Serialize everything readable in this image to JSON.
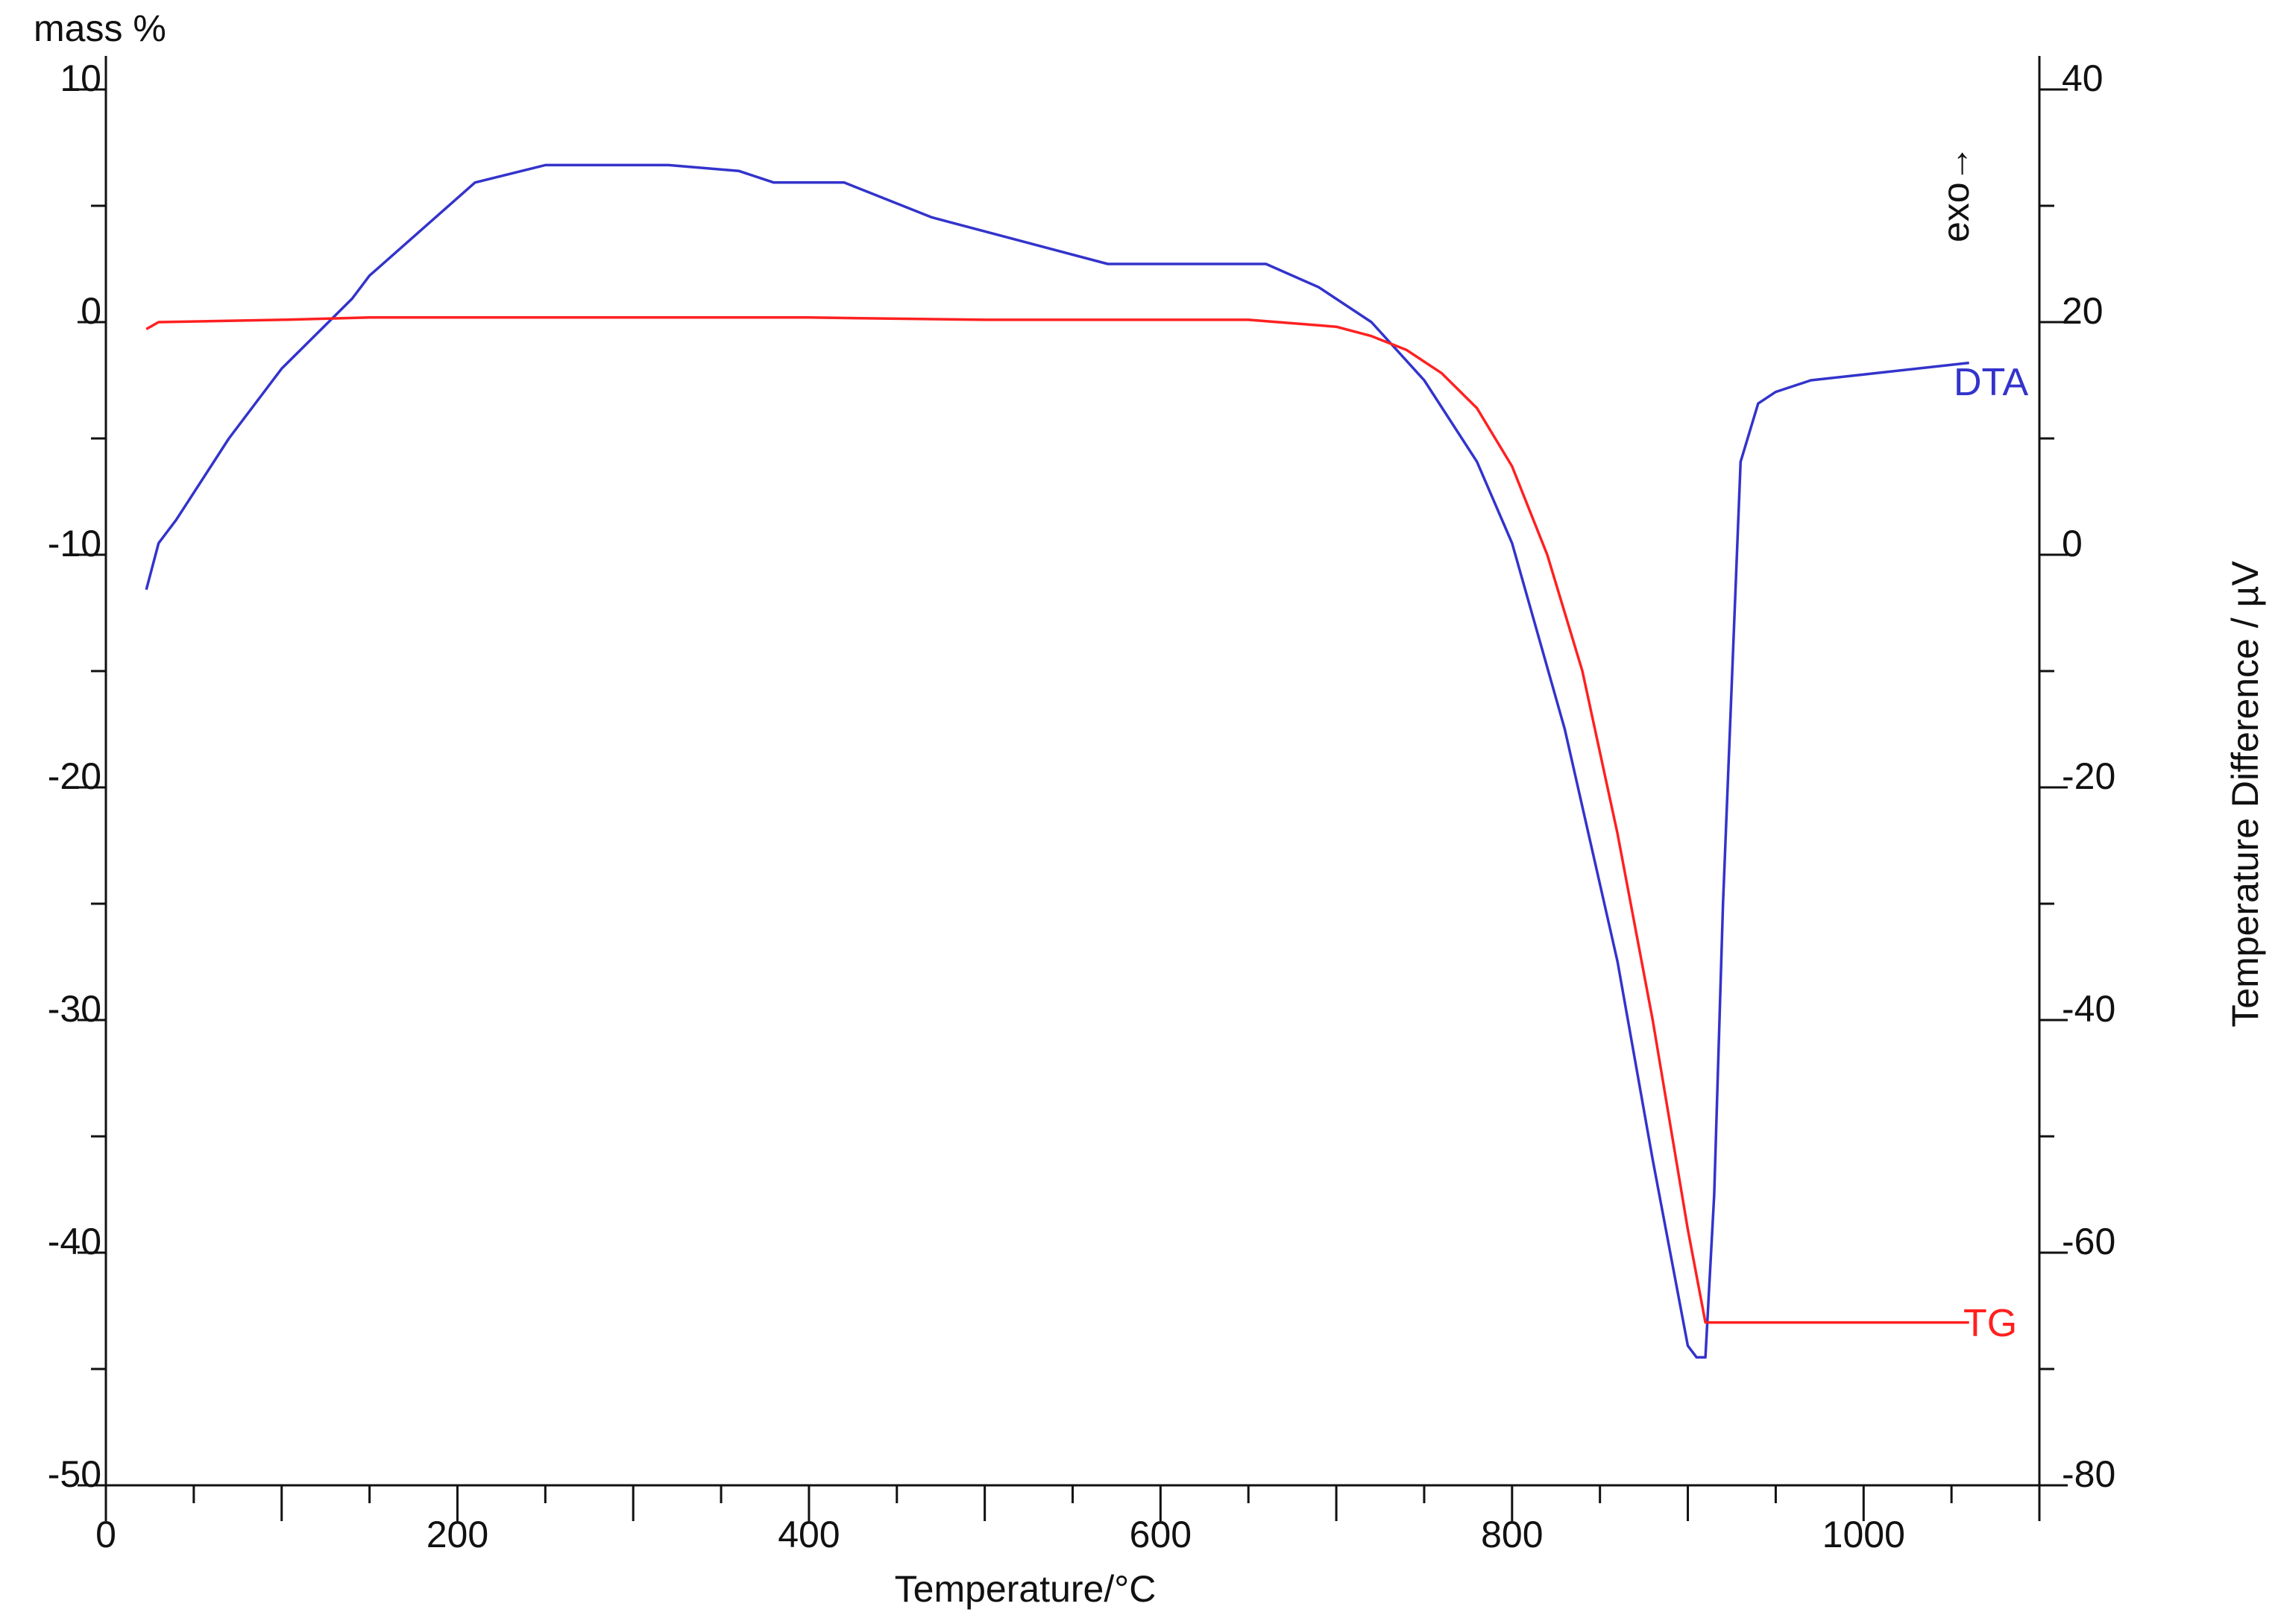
{
  "chart_data": {
    "type": "line",
    "title": "",
    "xlabel": "Temperature/°C",
    "ylabel_left": "mass %",
    "ylabel_right": "Temperature Difference / µV",
    "annotation": "exo→",
    "xlim": [
      0,
      1100
    ],
    "ylim_left": [
      -50,
      10
    ],
    "ylim_right": [
      -80,
      40
    ],
    "x_ticks": [
      0,
      200,
      400,
      600,
      800,
      1000
    ],
    "y_left_ticks": [
      10,
      0,
      -10,
      -20,
      -30,
      -40,
      -50
    ],
    "y_right_ticks": [
      40,
      20,
      0,
      -20,
      -40,
      -60,
      -80
    ],
    "grid": false,
    "colors": {
      "DTA": "#3333cc",
      "TG": "#ff2020",
      "axis": "#111111"
    },
    "series": [
      {
        "name": "DTA",
        "axis": "right",
        "color": "#3333cc",
        "x": [
          23,
          30,
          40,
          70,
          100,
          140,
          150,
          210,
          250,
          290,
          320,
          360,
          380,
          420,
          470,
          520,
          570,
          620,
          660,
          690,
          720,
          750,
          780,
          800,
          830,
          860,
          880,
          900,
          905,
          910,
          915,
          920,
          930,
          940,
          950,
          970,
          1000,
          1060
        ],
        "values": [
          -3,
          1,
          3,
          10,
          16,
          22,
          24,
          32,
          33.5,
          33.5,
          33.5,
          33,
          32,
          32,
          29,
          27,
          25,
          25,
          25,
          23,
          20,
          15,
          8,
          1,
          -15,
          -35,
          -52,
          -68,
          -69,
          -69,
          -55,
          -30,
          8,
          13,
          14,
          15,
          15.5,
          16.5
        ]
      },
      {
        "name": "TG",
        "axis": "left",
        "color": "#ff2020",
        "x": [
          23,
          30,
          100,
          150,
          200,
          300,
          400,
          500,
          600,
          650,
          700,
          720,
          740,
          760,
          780,
          800,
          820,
          840,
          860,
          880,
          900,
          910,
          915,
          1000,
          1060
        ],
        "values": [
          -0.3,
          0,
          0.1,
          0.2,
          0.2,
          0.2,
          0.2,
          0.1,
          0.1,
          0.1,
          -0.2,
          -0.6,
          -1.2,
          -2.2,
          -3.7,
          -6.2,
          -10,
          -15,
          -22,
          -30,
          -39,
          -43,
          -43,
          -43,
          -43
        ]
      }
    ]
  }
}
